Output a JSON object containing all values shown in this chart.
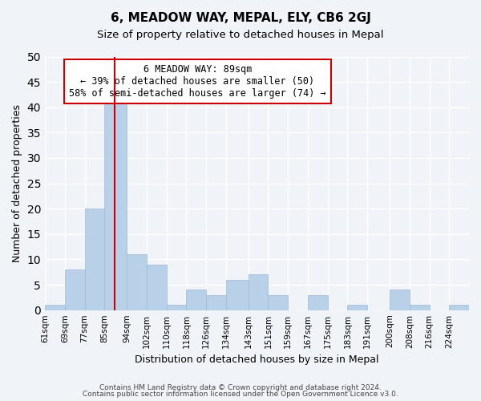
{
  "title": "6, MEADOW WAY, MEPAL, ELY, CB6 2GJ",
  "subtitle": "Size of property relative to detached houses in Mepal",
  "xlabel": "Distribution of detached houses by size in Mepal",
  "ylabel": "Number of detached properties",
  "footer_line1": "Contains HM Land Registry data © Crown copyright and database right 2024.",
  "footer_line2": "Contains public sector information licensed under the Open Government Licence v3.0.",
  "bin_labels": [
    "61sqm",
    "69sqm",
    "77sqm",
    "85sqm",
    "94sqm",
    "102sqm",
    "110sqm",
    "118sqm",
    "126sqm",
    "134sqm",
    "143sqm",
    "151sqm",
    "159sqm",
    "167sqm",
    "175sqm",
    "183sqm",
    "191sqm",
    "200sqm",
    "208sqm",
    "216sqm",
    "224sqm"
  ],
  "bin_edges": [
    61,
    69,
    77,
    85,
    94,
    102,
    110,
    118,
    126,
    134,
    143,
    151,
    159,
    167,
    175,
    183,
    191,
    200,
    208,
    216,
    224
  ],
  "counts": [
    1,
    8,
    20,
    41,
    11,
    9,
    1,
    4,
    3,
    6,
    7,
    3,
    0,
    3,
    0,
    1,
    0,
    4,
    1,
    0,
    1
  ],
  "property_size": 89,
  "bar_color": "#b8d0e8",
  "bar_edge_color": "#a0b8d0",
  "vline_color": "#cc0000",
  "vline_x": 89,
  "annotation_text": "6 MEADOW WAY: 89sqm\n← 39% of detached houses are smaller (50)\n58% of semi-detached houses are larger (74) →",
  "annotation_box_color": "white",
  "annotation_box_edge_color": "#cc0000",
  "ylim": [
    0,
    50
  ],
  "yticks": [
    0,
    5,
    10,
    15,
    20,
    25,
    30,
    35,
    40,
    45,
    50
  ],
  "background_color": "#f0f4f8",
  "grid_color": "white"
}
